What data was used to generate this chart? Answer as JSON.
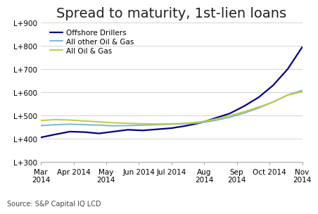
{
  "title": "Spread to maturity, 1st-lien loans",
  "source": "Source: S&P Capital IQ LCD",
  "ylim": [
    300,
    900
  ],
  "yticks": [
    300,
    400,
    500,
    600,
    700,
    800,
    900
  ],
  "ytick_labels": [
    "L+300",
    "L+400",
    "L+500",
    "L+600",
    "L+700",
    "L+800",
    "L+900"
  ],
  "x_labels": [
    "Mar\n2014",
    "Apr 2014",
    "May\n2014",
    "Jun 2014",
    "Jul 2014",
    "Aug\n2014",
    "Sep\n2014",
    "Oct 2014",
    "Nov\n2014"
  ],
  "series": {
    "Offshore Drillers": {
      "color": "#00007F",
      "linewidth": 1.6,
      "values": [
        405,
        418,
        430,
        428,
        422,
        430,
        438,
        435,
        440,
        445,
        455,
        468,
        488,
        508,
        540,
        578,
        630,
        700,
        795
      ]
    },
    "All other Oil & Gas": {
      "color": "#7EB4D4",
      "linewidth": 1.4,
      "values": [
        456,
        460,
        462,
        460,
        458,
        455,
        456,
        458,
        460,
        462,
        464,
        468,
        478,
        492,
        510,
        532,
        558,
        588,
        608
      ]
    },
    "All Oil & Gas": {
      "color": "#BBCC44",
      "linewidth": 1.4,
      "values": [
        478,
        482,
        480,
        476,
        472,
        468,
        466,
        464,
        463,
        464,
        466,
        472,
        484,
        498,
        516,
        536,
        558,
        588,
        602
      ]
    }
  },
  "background_color": "#FFFFFF",
  "grid_color": "#CCCCCC",
  "title_fontsize": 14,
  "label_fontsize": 7.5,
  "source_fontsize": 7.0,
  "legend_fontsize": 7.5
}
